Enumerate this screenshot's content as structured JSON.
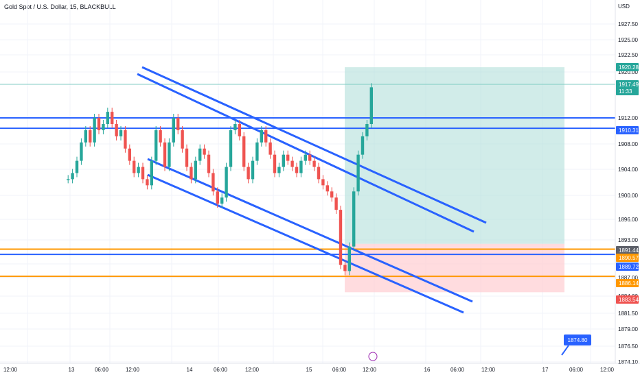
{
  "header": {
    "title": "Gold Spot / U.S. Dollar, 15, BLACKBULL"
  },
  "colors": {
    "up": "#26a69a",
    "down": "#ef5350",
    "trend_line": "#2962ff",
    "orange_line": "#ff9800",
    "target_zone": "#b2dfdb",
    "stop_zone": "#ffcdd2",
    "grid": "#f0f3fa"
  },
  "chart_data": {
    "type": "candlestick",
    "title": "Gold Spot / U.S. Dollar, 15, BLACKBULL",
    "y_unit": "USD",
    "y_ticks": [
      "1874.10",
      "1876.50",
      "1879.00",
      "1881.50",
      "1884.00",
      "1887.00",
      "1893.00",
      "1896.00",
      "1900.00",
      "1904.00",
      "1908.00",
      "1912.00",
      "1917.50",
      "1920.00",
      "1922.50",
      "1925.00",
      "1927.50"
    ],
    "x_ticks": [
      "12:00",
      "13",
      "06:00",
      "12:00",
      "14",
      "06:00",
      "12:00",
      "15",
      "06:00",
      "12:00",
      "16",
      "06:00",
      "12:00",
      "17",
      "06:00",
      "12:00"
    ],
    "price_labels": [
      {
        "text": "1920.28",
        "color": "#26a69a"
      },
      {
        "text": "1917.49",
        "sub": "11:33",
        "color": "#26a69a"
      },
      {
        "text": "1910.31",
        "color": "#2962ff"
      },
      {
        "text": "1891.44",
        "color": "#5d6069"
      },
      {
        "text": "1890.57",
        "color": "#ff9800"
      },
      {
        "text": "1889.72",
        "color": "#2962ff"
      },
      {
        "text": "1886.14",
        "color": "#ff9800"
      },
      {
        "text": "1883.54",
        "color": "#ef5350"
      }
    ],
    "horizontal_levels": [
      1910.31,
      1889.72,
      1890.57,
      1886.14,
      1912.0
    ],
    "trade_box": {
      "entry": 1891.44,
      "target": 1920.28,
      "stop": 1883.54
    },
    "callout": "1874.80",
    "close_series": [
      1902,
      1903,
      1905,
      1908,
      1910,
      1908,
      1912,
      1910,
      1911,
      1913,
      1911,
      1909,
      1910,
      1907,
      1905,
      1903,
      1904,
      1902,
      1901,
      1905,
      1910,
      1908,
      1904,
      1908,
      1912,
      1910,
      1907,
      1904,
      1902,
      1905,
      1907,
      1906,
      1903,
      1900,
      1898,
      1899,
      1904,
      1910,
      1911,
      1909,
      1904,
      1902,
      1905,
      1908,
      1910,
      1908,
      1906,
      1903,
      1904,
      1906,
      1905,
      1904,
      1903,
      1905,
      1906,
      1905,
      1904,
      1902,
      1901,
      1900,
      1899,
      1897,
      1888,
      1887,
      1891,
      1900,
      1906,
      1909,
      1911,
      1917
    ]
  }
}
